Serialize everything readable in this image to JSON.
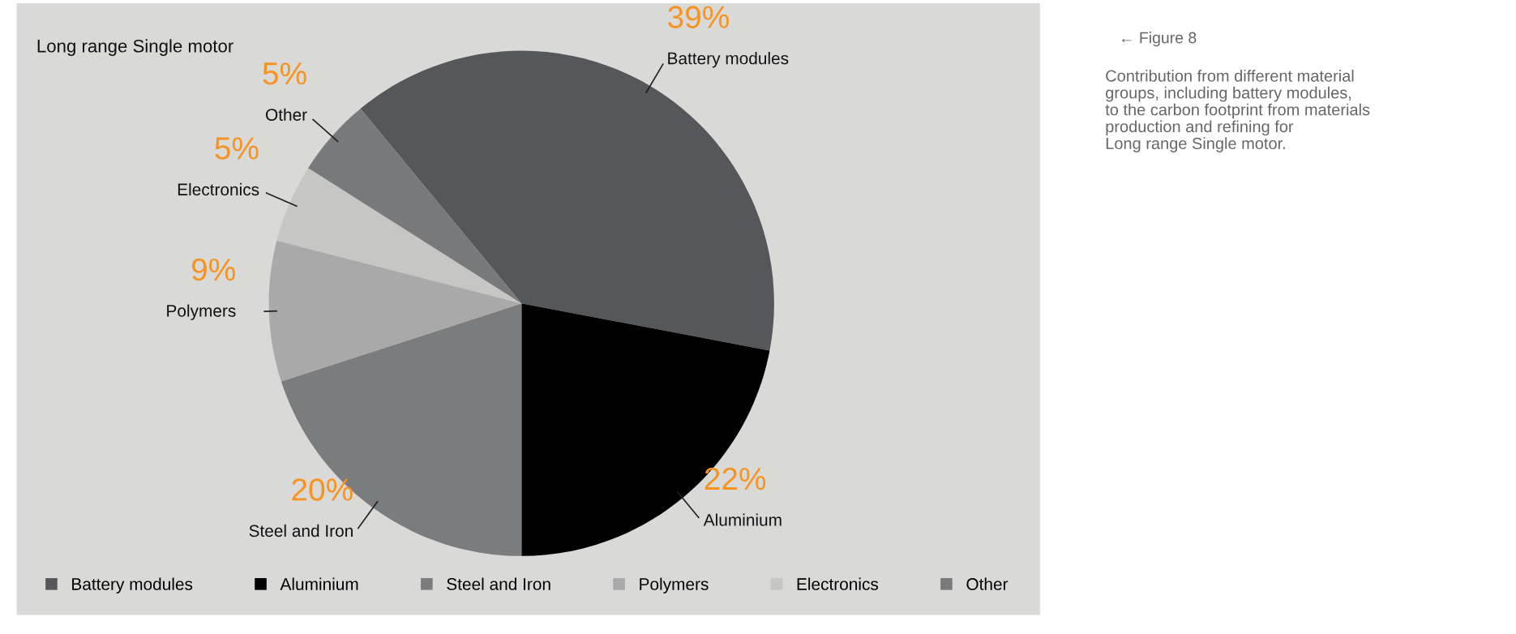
{
  "chart_data": {
    "type": "pie",
    "title": "Long range Single motor",
    "categories": [
      "Battery modules",
      "Aluminium",
      "Steel and Iron",
      "Polymers",
      "Electronics",
      "Other"
    ],
    "values": [
      39,
      22,
      20,
      9,
      5,
      5
    ],
    "colors": [
      "#55575b",
      "#000000",
      "#7b7c7e",
      "#a8a9a8",
      "#c6c6c4",
      "#78797b"
    ],
    "value_labels": [
      "39%",
      "22%",
      "20%",
      "9%",
      "5%",
      "5%"
    ],
    "legend": "bottom",
    "annotations": [
      "← Figure 8",
      "Contribution from different material\ngroups, including battery modules,\nto the carbon footprint from materials\nproduction and refining for\nLong range Single motor."
    ]
  }
}
